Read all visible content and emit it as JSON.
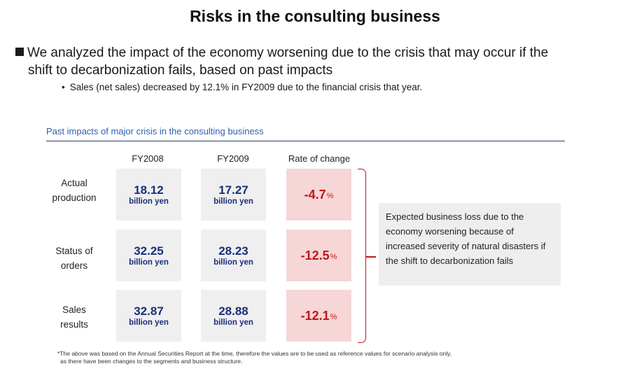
{
  "title": "Risks in the consulting business",
  "main_bullet": {
    "line1": "We analyzed the impact of the economy worsening due to the crisis that may occur if the",
    "line2": "shift to decarbonization fails, based on past impacts"
  },
  "sub_bullet": "Sales (net sales) decreased by 12.1% in FY2009 due to the financial crisis that year.",
  "table": {
    "caption": "Past impacts of major crisis in the consulting business",
    "headers": [
      "FY2008",
      "FY2009",
      "Rate of change"
    ],
    "unit": "billion yen",
    "percent_sign": "%",
    "rows": [
      {
        "label_line1": "Actual",
        "label_line2": "production",
        "fy2008": "18.12",
        "fy2009": "17.27",
        "rate": "-4.7"
      },
      {
        "label_line1": "Status of",
        "label_line2": "orders",
        "fy2008": "32.25",
        "fy2009": "28.23",
        "rate": "-12.5"
      },
      {
        "label_line1": "Sales",
        "label_line2": "results",
        "fy2008": "32.87",
        "fy2009": "28.88",
        "rate": "-12.1"
      }
    ]
  },
  "callout": "Expected business loss due to the economy worsening because of increased severity of natural disasters if the shift to decarbonization fails",
  "footnote": {
    "line1": "*The above was based on the Annual Securities Report at the time, therefore the values are to be used as reference values for scenario analysis only,",
    "line2": "as there have been changes to the segments and business structure."
  },
  "colors": {
    "value_blue": "#1a2f7a",
    "rate_red": "#c0161b",
    "rate_bg": "#f6d6d6",
    "cell_bg": "#efefef",
    "caption_blue": "#2f5fb3"
  }
}
